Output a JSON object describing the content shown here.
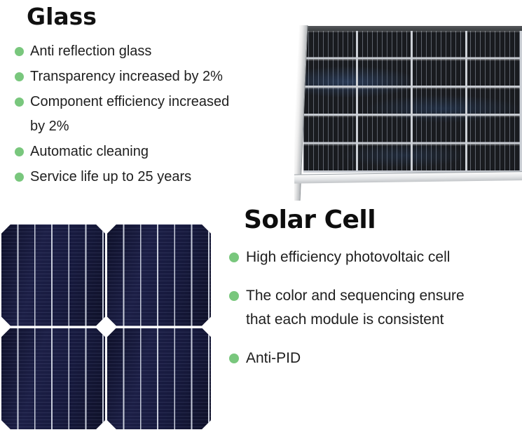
{
  "colors": {
    "background": "#ffffff",
    "bullet_green": "#79c77d",
    "heading_text": "#111111",
    "body_text": "#1e1e1e",
    "panel_cell_black": "#191b1f",
    "panel_grid_line": "#ccd0d6",
    "frame_silver": "#ececec",
    "solar_cell_navy": "#171a3e",
    "busbar_line": "#d0d5e2"
  },
  "icons": {
    "bullet": "green-dot-icon"
  },
  "glass_section": {
    "title": "Glass",
    "items": [
      "Anti reflection glass",
      "Transparency increased by 2%",
      "Component efficiency increased\nby 2%",
      "Automatic cleaning",
      "Service life up to 25 years"
    ]
  },
  "solar_cell_section": {
    "title": "Solar Cell",
    "items": [
      "High efficiency photovoltaic cell",
      "The color and sequencing ensure\nthat each module is consistent",
      "Anti-PID"
    ]
  }
}
